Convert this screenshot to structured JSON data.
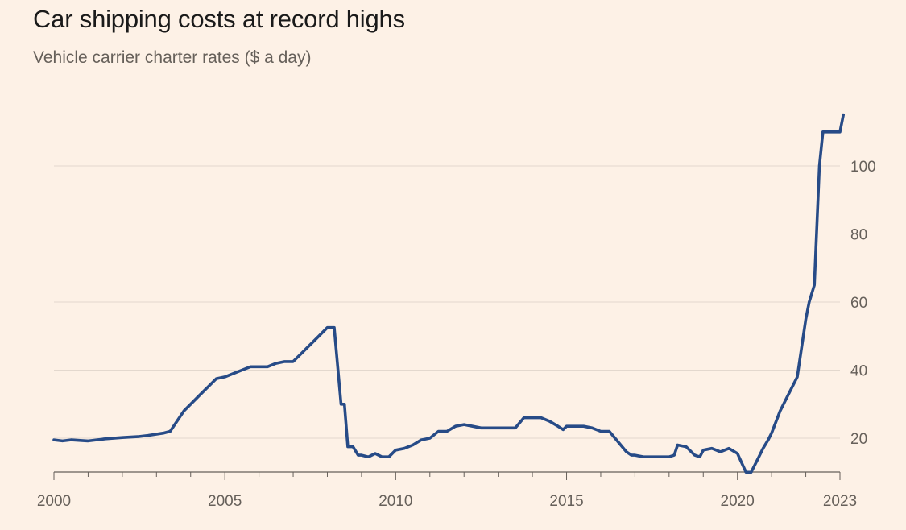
{
  "title": "Car shipping costs at record highs",
  "subtitle": "Vehicle carrier charter rates ($ a day)",
  "colors": {
    "background": "#FDF1E6",
    "line": "#274B87",
    "grid": "#E3D8CE",
    "axis": "#66605A"
  },
  "chart_data": {
    "type": "line",
    "title": "Car shipping costs at record highs",
    "subtitle": "Vehicle carrier charter rates ($ a day)",
    "xlabel": "",
    "ylabel": "",
    "xlim": [
      2000,
      2023
    ],
    "ylim": [
      10,
      115
    ],
    "x_ticks": [
      2000,
      2005,
      2010,
      2015,
      2020,
      2023
    ],
    "y_ticks": [
      20,
      40,
      60,
      80,
      100
    ],
    "y_axis_position": "right",
    "grid": "horizontal",
    "series": [
      {
        "color": "#274B87",
        "x": [
          2000.0,
          2000.25,
          2000.5,
          2001.0,
          2001.25,
          2001.5,
          2002.0,
          2002.5,
          2002.75,
          2003.2,
          2003.4,
          2003.6,
          2003.8,
          2004.0,
          2004.25,
          2004.5,
          2004.75,
          2005.0,
          2005.25,
          2005.5,
          2005.75,
          2006.0,
          2006.25,
          2006.5,
          2006.75,
          2007.0,
          2007.25,
          2007.5,
          2007.75,
          2008.0,
          2008.2,
          2008.4,
          2008.5,
          2008.6,
          2008.75,
          2008.9,
          2009.0,
          2009.2,
          2009.4,
          2009.6,
          2009.8,
          2010.0,
          2010.25,
          2010.5,
          2010.75,
          2011.0,
          2011.25,
          2011.5,
          2011.75,
          2012.0,
          2012.25,
          2012.5,
          2012.75,
          2013.0,
          2013.5,
          2013.75,
          2014.0,
          2014.25,
          2014.5,
          2014.75,
          2014.9,
          2015.0,
          2015.25,
          2015.5,
          2015.75,
          2016.0,
          2016.25,
          2016.5,
          2016.75,
          2016.9,
          2017.0,
          2017.25,
          2017.5,
          2017.75,
          2018.0,
          2018.15,
          2018.25,
          2018.5,
          2018.75,
          2018.9,
          2019.0,
          2019.25,
          2019.5,
          2019.75,
          2020.0,
          2020.25,
          2020.4,
          2020.6,
          2020.75,
          2020.9,
          2021.0,
          2021.25,
          2021.5,
          2021.75,
          2022.0,
          2022.1,
          2022.25,
          2022.4,
          2022.5,
          2022.6,
          2022.75,
          2023.0,
          2023.1
        ],
        "y": [
          19.5,
          19.2,
          19.5,
          19.2,
          19.5,
          19.8,
          20.2,
          20.5,
          20.8,
          21.5,
          22.0,
          25.0,
          28.0,
          30.0,
          32.5,
          35.0,
          37.5,
          38.0,
          39.0,
          40.0,
          41.0,
          41.0,
          41.0,
          42.0,
          42.5,
          42.5,
          45.0,
          47.5,
          50.0,
          52.5,
          52.5,
          30.0,
          30.0,
          17.5,
          17.5,
          15.0,
          15.0,
          14.5,
          15.5,
          14.5,
          14.5,
          16.5,
          17.0,
          18.0,
          19.5,
          20.0,
          22.0,
          22.0,
          23.5,
          24.0,
          23.5,
          23.0,
          23.0,
          23.0,
          23.0,
          26.0,
          26.0,
          26.0,
          25.0,
          23.5,
          22.5,
          23.5,
          23.5,
          23.5,
          23.0,
          22.0,
          22.0,
          19.0,
          16.0,
          15.0,
          15.0,
          14.5,
          14.5,
          14.5,
          14.5,
          15.0,
          18.0,
          17.5,
          15.0,
          14.5,
          16.5,
          17.0,
          16.0,
          17.0,
          15.5,
          10.0,
          10.0,
          14.0,
          17.0,
          19.5,
          21.5,
          28.0,
          33.0,
          38.0,
          55.0,
          60.0,
          65.0,
          100.0,
          110.0,
          110.0,
          110.0,
          110.0,
          115.0
        ]
      }
    ]
  }
}
